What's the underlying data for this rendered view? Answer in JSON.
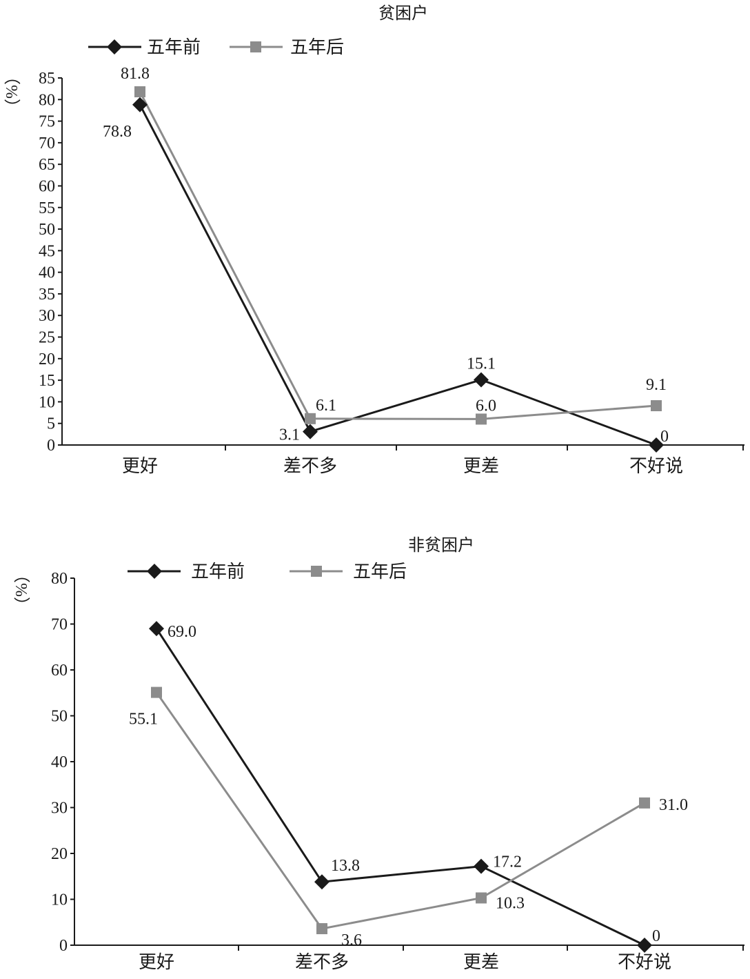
{
  "chart_data": [
    {
      "type": "line",
      "title": "贫困户",
      "ylabel": "（%）",
      "categories": [
        "更好",
        "差不多",
        "更差",
        "不好说"
      ],
      "ylim": [
        0,
        85
      ],
      "yticks": [
        0,
        5,
        10,
        15,
        20,
        25,
        30,
        35,
        40,
        45,
        50,
        55,
        60,
        65,
        70,
        75,
        80,
        85
      ],
      "grid": false,
      "legend": "top-left",
      "series": [
        {
          "name": "五年前",
          "values": [
            78.8,
            3.1,
            15.1,
            0
          ],
          "labels": [
            "78.8",
            "3.1",
            "15.1",
            "0"
          ],
          "color": "#1a1a1a",
          "marker": "diamond"
        },
        {
          "name": "五年后",
          "values": [
            81.8,
            6.1,
            6.0,
            9.1
          ],
          "labels": [
            "81.8",
            "6.1",
            "6.0",
            "9.1"
          ],
          "color": "#8c8c8c",
          "marker": "square"
        }
      ]
    },
    {
      "type": "line",
      "title": "非贫困户",
      "ylabel": "（%）",
      "categories": [
        "更好",
        "差不多",
        "更差",
        "不好说"
      ],
      "ylim": [
        0,
        80
      ],
      "yticks": [
        0,
        10,
        20,
        30,
        40,
        50,
        60,
        70,
        80
      ],
      "grid": false,
      "legend": "top-left",
      "series": [
        {
          "name": "五年前",
          "values": [
            69.0,
            13.8,
            17.2,
            0
          ],
          "labels": [
            "69.0",
            "13.8",
            "17.2",
            "0"
          ],
          "color": "#1a1a1a",
          "marker": "diamond"
        },
        {
          "name": "五年后",
          "values": [
            55.1,
            3.6,
            10.3,
            31.0
          ],
          "labels": [
            "55.1",
            "3.6",
            "10.3",
            "31.0"
          ],
          "color": "#8c8c8c",
          "marker": "square"
        }
      ]
    }
  ]
}
